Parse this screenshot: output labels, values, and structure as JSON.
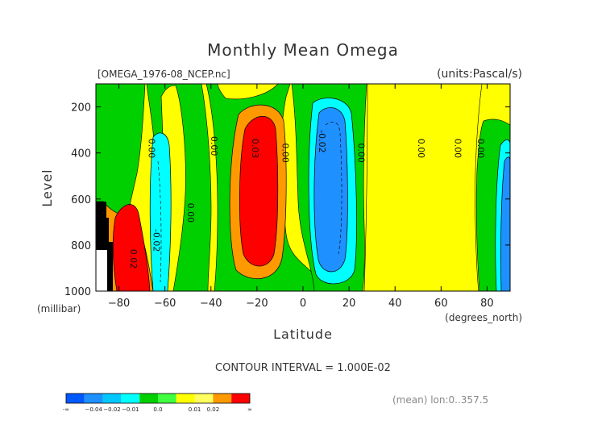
{
  "header": {
    "title": "Monthly Mean Omega",
    "file": "[OMEGA_1976-08_NCEP.nc]",
    "units": "(units:Pascal/s)"
  },
  "footer": {
    "contour_interval": "CONTOUR INTERVAL = 1.000E-02",
    "mean_note": "(mean) lon:0..357.5"
  },
  "chart_data": {
    "type": "heatmap",
    "title": "Monthly Mean Omega",
    "xlabel": "Latitude",
    "ylabel": "Level",
    "x_unit": "(degrees_north)",
    "y_unit": "(millibar)",
    "xlim": [
      -90,
      90
    ],
    "ylim": [
      1000,
      100
    ],
    "x_ticks": [
      -80,
      -60,
      -40,
      -20,
      0,
      20,
      40,
      60,
      80
    ],
    "x_tick_labels": [
      "−80",
      "−60",
      "−40",
      "−20",
      "0",
      "20",
      "40",
      "60",
      "80"
    ],
    "y_ticks": [
      200,
      400,
      600,
      800,
      1000
    ],
    "y_tick_labels": [
      "200",
      "400",
      "600",
      "800",
      "1000"
    ],
    "contour_interval": 0.01,
    "colorbar": {
      "colors": [
        "#0058ff",
        "#1e90ff",
        "#00c8ff",
        "#00ffff",
        "#00d000",
        "#40ff40",
        "#ffff00",
        "#ffff60",
        "#ff9900",
        "#ff0000"
      ],
      "labels": [
        "-∞",
        "−0.04",
        "−0.02",
        "−0.01",
        "0.0",
        "0.01",
        "0.02",
        "∞"
      ]
    },
    "regions": [
      {
        "value": "cyan",
        "x0": -70,
        "x1": -62,
        "p0": 300,
        "p1": 1000
      },
      {
        "value": "cyan",
        "x0": 2,
        "x1": 25,
        "p0": 170,
        "p1": 960
      },
      {
        "value": "cyan",
        "x0": 82,
        "x1": 90,
        "p0": 320,
        "p1": 1000
      },
      {
        "value": "blue",
        "x0": 5,
        "x1": 20,
        "p0": 220,
        "p1": 880
      },
      {
        "value": "blue",
        "x0": 84,
        "x1": 90,
        "p0": 380,
        "p1": 1000
      },
      {
        "value": "orange",
        "x0": -33,
        "x1": -13,
        "p0": 170,
        "p1": 950
      },
      {
        "value": "red",
        "x0": -30,
        "x1": -16,
        "p0": 230,
        "p1": 900
      },
      {
        "value": "red",
        "x0": -82,
        "x1": -68,
        "p0": 660,
        "p1": 1000
      }
    ],
    "contour_labels": [
      {
        "text": "0.00",
        "x": -67,
        "p": 380
      },
      {
        "text": "0.00",
        "x": -40,
        "p": 370
      },
      {
        "text": "0.03",
        "x": -22,
        "p": 380
      },
      {
        "text": "0.00",
        "x": -9,
        "p": 400
      },
      {
        "text": "-0.02",
        "x": 7,
        "p": 350
      },
      {
        "text": "0.00",
        "x": 24,
        "p": 400
      },
      {
        "text": "0.00",
        "x": 50,
        "p": 380
      },
      {
        "text": "0.00",
        "x": 66,
        "p": 380
      },
      {
        "text": "0.00",
        "x": 76,
        "p": 380
      },
      {
        "text": "0.00",
        "x": -50,
        "p": 660
      },
      {
        "text": "-0.02",
        "x": -65,
        "p": 780
      },
      {
        "text": "0.02",
        "x": -75,
        "p": 860
      }
    ]
  }
}
